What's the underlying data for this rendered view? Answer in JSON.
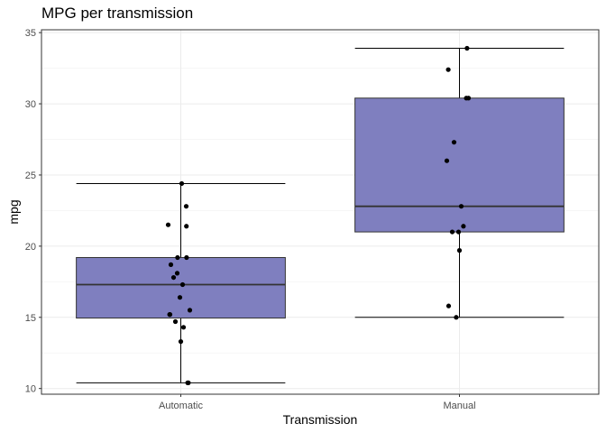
{
  "chart_data": {
    "type": "boxplot",
    "title": "MPG per transmission",
    "xlabel": "Transmission",
    "ylabel": "mpg",
    "categories": [
      "Automatic",
      "Manual"
    ],
    "ylim": [
      9.6,
      35.2
    ],
    "yticks": [
      10,
      15,
      20,
      25,
      30,
      35
    ],
    "grid": true,
    "box_fill": "#7f7fbf",
    "point_color": "#000000",
    "boxes": [
      {
        "category": "Automatic",
        "min": 10.4,
        "q1": 14.95,
        "median": 17.3,
        "q3": 19.2,
        "max": 24.4
      },
      {
        "category": "Manual",
        "min": 15.0,
        "q1": 21.0,
        "median": 22.8,
        "q3": 30.4,
        "max": 33.9
      }
    ],
    "points": [
      {
        "category": "Automatic",
        "values": [
          21.4,
          18.7,
          18.1,
          14.3,
          24.4,
          22.8,
          19.2,
          17.8,
          16.4,
          17.3,
          15.2,
          10.4,
          10.4,
          14.7,
          21.5,
          15.5,
          15.2,
          13.3,
          19.2
        ]
      },
      {
        "category": "Manual",
        "values": [
          21.0,
          21.0,
          22.8,
          32.4,
          30.4,
          33.9,
          27.3,
          26.0,
          30.4,
          15.8,
          19.7,
          15.0,
          21.4
        ]
      }
    ]
  }
}
